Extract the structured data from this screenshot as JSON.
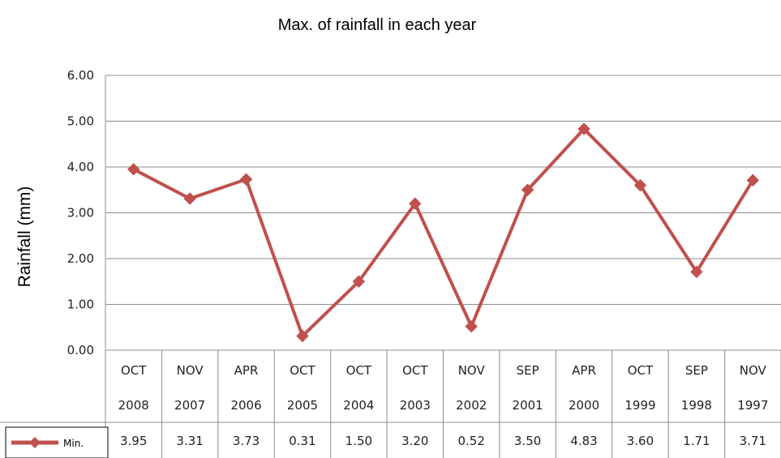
{
  "chart_data": {
    "type": "line",
    "title": "Max. of rainfall in each year",
    "ylabel": "Rainfall (mm)",
    "ylim": [
      0,
      6
    ],
    "yticks": [
      "0.00",
      "1.00",
      "2.00",
      "3.00",
      "4.00",
      "5.00",
      "6.00"
    ],
    "months": [
      "OCT",
      "NOV",
      "APR",
      "OCT",
      "OCT",
      "OCT",
      "NOV",
      "SEP",
      "APR",
      "OCT",
      "SEP",
      "NOV"
    ],
    "years": [
      "2008",
      "2007",
      "2006",
      "2005",
      "2004",
      "2003",
      "2002",
      "2001",
      "2000",
      "1999",
      "1998",
      "1997"
    ],
    "series": [
      {
        "name": "Min.",
        "color": "#c0504d",
        "values": [
          3.95,
          3.31,
          3.73,
          0.31,
          1.5,
          3.2,
          0.52,
          3.5,
          4.83,
          3.6,
          1.71,
          3.71
        ],
        "labels": [
          "3.95",
          "3.31",
          "3.73",
          "0.31",
          "1.50",
          "3.20",
          "0.52",
          "3.50",
          "4.83",
          "3.60",
          "1.71",
          "3.71"
        ]
      }
    ],
    "grid": true,
    "legend": "bottom-left"
  }
}
